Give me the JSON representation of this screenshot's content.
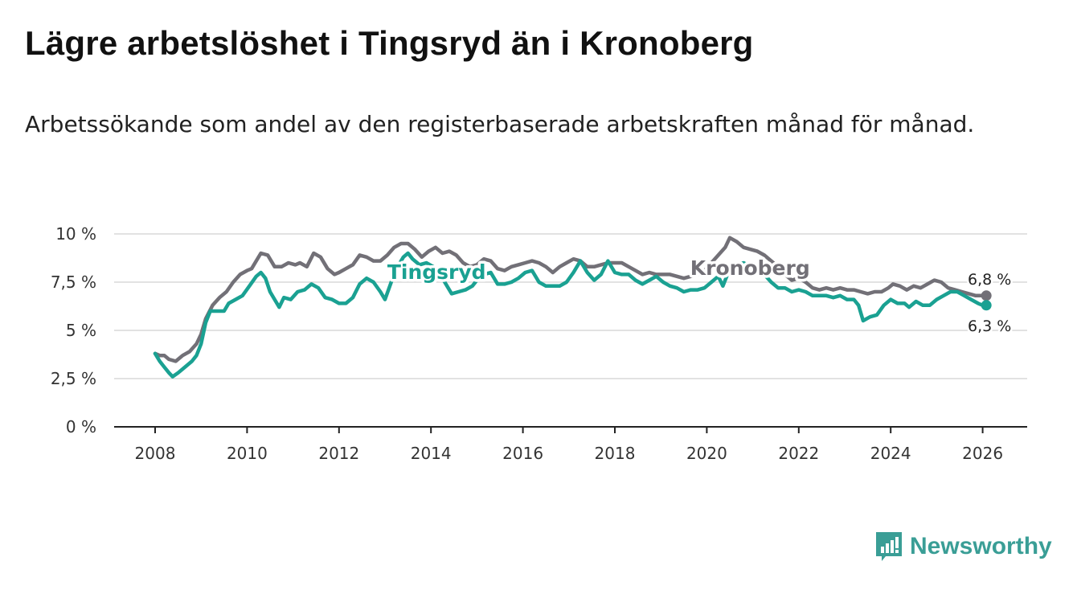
{
  "title": "Lägre arbetslöshet i Tingsryd än i Kronoberg",
  "subtitle": "Arbetssökande som andel av den registerbaserade arbetskraften månad för månad.",
  "brand": {
    "name": "Newsworthy",
    "icon": "newsworthy-logo-icon",
    "color": "#3a9e96"
  },
  "chart_data": {
    "type": "line",
    "title": "Lägre arbetslöshet i Tingsryd än i Kronoberg",
    "xlabel": "",
    "ylabel": "",
    "xlim": [
      2007.5,
      2027.0
    ],
    "ylim": [
      0,
      10
    ],
    "grid": true,
    "y_ticks": [
      0,
      2.5,
      5,
      7.5,
      10
    ],
    "y_tick_labels": [
      "0 %",
      "2,5 %",
      "5 %",
      "7,5 %",
      "10 %"
    ],
    "x_ticks": [
      2008,
      2010,
      2012,
      2014,
      2016,
      2018,
      2020,
      2022,
      2024,
      2026
    ],
    "x_tick_labels": [
      "2008",
      "2010",
      "2012",
      "2014",
      "2016",
      "2018",
      "2020",
      "2022",
      "2024",
      "2026"
    ],
    "series": [
      {
        "name": "Kronoberg",
        "label": "Kronoberg",
        "color": "#727077",
        "end_label": "6,8 %",
        "points": [
          [
            2008.0,
            3.8
          ],
          [
            2008.1,
            3.7
          ],
          [
            2008.2,
            3.7
          ],
          [
            2008.3,
            3.5
          ],
          [
            2008.45,
            3.4
          ],
          [
            2008.6,
            3.7
          ],
          [
            2008.75,
            3.9
          ],
          [
            2008.9,
            4.3
          ],
          [
            2009.0,
            4.8
          ],
          [
            2009.1,
            5.6
          ],
          [
            2009.25,
            6.3
          ],
          [
            2009.4,
            6.7
          ],
          [
            2009.55,
            7.0
          ],
          [
            2009.7,
            7.5
          ],
          [
            2009.85,
            7.9
          ],
          [
            2010.0,
            8.1
          ],
          [
            2010.1,
            8.2
          ],
          [
            2010.2,
            8.6
          ],
          [
            2010.3,
            9.0
          ],
          [
            2010.45,
            8.9
          ],
          [
            2010.6,
            8.3
          ],
          [
            2010.75,
            8.3
          ],
          [
            2010.9,
            8.5
          ],
          [
            2011.05,
            8.4
          ],
          [
            2011.15,
            8.5
          ],
          [
            2011.3,
            8.3
          ],
          [
            2011.45,
            9.0
          ],
          [
            2011.6,
            8.8
          ],
          [
            2011.75,
            8.2
          ],
          [
            2011.9,
            7.9
          ],
          [
            2012.0,
            8.0
          ],
          [
            2012.15,
            8.2
          ],
          [
            2012.3,
            8.4
          ],
          [
            2012.45,
            8.9
          ],
          [
            2012.6,
            8.8
          ],
          [
            2012.75,
            8.6
          ],
          [
            2012.9,
            8.6
          ],
          [
            2013.05,
            8.9
          ],
          [
            2013.2,
            9.3
          ],
          [
            2013.35,
            9.5
          ],
          [
            2013.5,
            9.5
          ],
          [
            2013.65,
            9.2
          ],
          [
            2013.8,
            8.8
          ],
          [
            2013.95,
            9.1
          ],
          [
            2014.1,
            9.3
          ],
          [
            2014.25,
            9.0
          ],
          [
            2014.4,
            9.1
          ],
          [
            2014.55,
            8.9
          ],
          [
            2014.7,
            8.5
          ],
          [
            2014.85,
            8.3
          ],
          [
            2015.0,
            8.4
          ],
          [
            2015.15,
            8.7
          ],
          [
            2015.3,
            8.6
          ],
          [
            2015.45,
            8.2
          ],
          [
            2015.6,
            8.1
          ],
          [
            2015.75,
            8.3
          ],
          [
            2015.9,
            8.4
          ],
          [
            2016.05,
            8.5
          ],
          [
            2016.2,
            8.6
          ],
          [
            2016.35,
            8.5
          ],
          [
            2016.5,
            8.3
          ],
          [
            2016.65,
            8.0
          ],
          [
            2016.8,
            8.3
          ],
          [
            2016.95,
            8.5
          ],
          [
            2017.1,
            8.7
          ],
          [
            2017.25,
            8.6
          ],
          [
            2017.4,
            8.3
          ],
          [
            2017.55,
            8.3
          ],
          [
            2017.7,
            8.4
          ],
          [
            2017.85,
            8.5
          ],
          [
            2018.0,
            8.5
          ],
          [
            2018.15,
            8.5
          ],
          [
            2018.3,
            8.3
          ],
          [
            2018.45,
            8.1
          ],
          [
            2018.6,
            7.9
          ],
          [
            2018.75,
            8.0
          ],
          [
            2018.9,
            7.9
          ],
          [
            2019.05,
            7.9
          ],
          [
            2019.2,
            7.9
          ],
          [
            2019.35,
            7.8
          ],
          [
            2019.5,
            7.7
          ],
          [
            2019.65,
            7.8
          ],
          [
            2019.8,
            7.9
          ],
          [
            2019.95,
            8.1
          ],
          [
            2020.1,
            8.5
          ],
          [
            2020.25,
            8.9
          ],
          [
            2020.4,
            9.3
          ],
          [
            2020.5,
            9.8
          ],
          [
            2020.65,
            9.6
          ],
          [
            2020.8,
            9.3
          ],
          [
            2020.95,
            9.2
          ],
          [
            2021.1,
            9.1
          ],
          [
            2021.25,
            8.9
          ],
          [
            2021.4,
            8.6
          ],
          [
            2021.55,
            8.3
          ],
          [
            2021.7,
            7.9
          ],
          [
            2021.85,
            7.6
          ],
          [
            2022.0,
            7.7
          ],
          [
            2022.15,
            7.5
          ],
          [
            2022.3,
            7.2
          ],
          [
            2022.45,
            7.1
          ],
          [
            2022.6,
            7.2
          ],
          [
            2022.75,
            7.1
          ],
          [
            2022.9,
            7.2
          ],
          [
            2023.05,
            7.1
          ],
          [
            2023.2,
            7.1
          ],
          [
            2023.35,
            7.0
          ],
          [
            2023.5,
            6.9
          ],
          [
            2023.65,
            7.0
          ],
          [
            2023.8,
            7.0
          ],
          [
            2023.95,
            7.2
          ],
          [
            2024.05,
            7.4
          ],
          [
            2024.2,
            7.3
          ],
          [
            2024.35,
            7.1
          ],
          [
            2024.5,
            7.3
          ],
          [
            2024.65,
            7.2
          ],
          [
            2024.8,
            7.4
          ],
          [
            2024.95,
            7.6
          ],
          [
            2025.1,
            7.5
          ],
          [
            2025.25,
            7.2
          ],
          [
            2025.4,
            7.1
          ],
          [
            2025.55,
            7.0
          ],
          [
            2025.7,
            6.9
          ],
          [
            2025.85,
            6.8
          ],
          [
            2026.0,
            6.8
          ],
          [
            2026.08,
            6.8
          ]
        ]
      },
      {
        "name": "Tingsryd",
        "label": "Tingsryd",
        "color": "#1aa192",
        "end_label": "6,3 %",
        "points": [
          [
            2008.0,
            3.8
          ],
          [
            2008.1,
            3.4
          ],
          [
            2008.2,
            3.1
          ],
          [
            2008.3,
            2.8
          ],
          [
            2008.38,
            2.6
          ],
          [
            2008.5,
            2.8
          ],
          [
            2008.65,
            3.1
          ],
          [
            2008.8,
            3.4
          ],
          [
            2008.9,
            3.7
          ],
          [
            2009.0,
            4.3
          ],
          [
            2009.1,
            5.4
          ],
          [
            2009.2,
            6.0
          ],
          [
            2009.35,
            6.0
          ],
          [
            2009.5,
            6.0
          ],
          [
            2009.6,
            6.4
          ],
          [
            2009.75,
            6.6
          ],
          [
            2009.9,
            6.8
          ],
          [
            2010.05,
            7.3
          ],
          [
            2010.2,
            7.8
          ],
          [
            2010.3,
            8.0
          ],
          [
            2010.4,
            7.7
          ],
          [
            2010.5,
            7.0
          ],
          [
            2010.6,
            6.6
          ],
          [
            2010.7,
            6.2
          ],
          [
            2010.8,
            6.7
          ],
          [
            2010.95,
            6.6
          ],
          [
            2011.1,
            7.0
          ],
          [
            2011.25,
            7.1
          ],
          [
            2011.4,
            7.4
          ],
          [
            2011.55,
            7.2
          ],
          [
            2011.7,
            6.7
          ],
          [
            2011.85,
            6.6
          ],
          [
            2012.0,
            6.4
          ],
          [
            2012.15,
            6.4
          ],
          [
            2012.3,
            6.7
          ],
          [
            2012.45,
            7.4
          ],
          [
            2012.6,
            7.7
          ],
          [
            2012.75,
            7.5
          ],
          [
            2012.9,
            7.0
          ],
          [
            2013.0,
            6.6
          ],
          [
            2013.15,
            7.6
          ],
          [
            2013.3,
            8.4
          ],
          [
            2013.4,
            8.8
          ],
          [
            2013.5,
            9.0
          ],
          [
            2013.6,
            8.7
          ],
          [
            2013.75,
            8.4
          ],
          [
            2013.9,
            8.5
          ],
          [
            2014.05,
            8.3
          ],
          [
            2014.2,
            7.9
          ],
          [
            2014.35,
            7.3
          ],
          [
            2014.45,
            6.9
          ],
          [
            2014.6,
            7.0
          ],
          [
            2014.75,
            7.1
          ],
          [
            2014.9,
            7.3
          ],
          [
            2015.0,
            7.6
          ],
          [
            2015.15,
            7.9
          ],
          [
            2015.3,
            8.0
          ],
          [
            2015.45,
            7.4
          ],
          [
            2015.6,
            7.4
          ],
          [
            2015.75,
            7.5
          ],
          [
            2015.9,
            7.7
          ],
          [
            2016.05,
            8.0
          ],
          [
            2016.2,
            8.1
          ],
          [
            2016.35,
            7.5
          ],
          [
            2016.5,
            7.3
          ],
          [
            2016.65,
            7.3
          ],
          [
            2016.8,
            7.3
          ],
          [
            2016.95,
            7.5
          ],
          [
            2017.1,
            8.0
          ],
          [
            2017.25,
            8.6
          ],
          [
            2017.4,
            8.0
          ],
          [
            2017.55,
            7.6
          ],
          [
            2017.7,
            7.9
          ],
          [
            2017.85,
            8.6
          ],
          [
            2018.0,
            8.0
          ],
          [
            2018.15,
            7.9
          ],
          [
            2018.3,
            7.9
          ],
          [
            2018.45,
            7.6
          ],
          [
            2018.6,
            7.4
          ],
          [
            2018.75,
            7.6
          ],
          [
            2018.9,
            7.8
          ],
          [
            2019.05,
            7.5
          ],
          [
            2019.2,
            7.3
          ],
          [
            2019.35,
            7.2
          ],
          [
            2019.5,
            7.0
          ],
          [
            2019.65,
            7.1
          ],
          [
            2019.8,
            7.1
          ],
          [
            2019.95,
            7.2
          ],
          [
            2020.1,
            7.5
          ],
          [
            2020.25,
            7.8
          ],
          [
            2020.35,
            7.3
          ],
          [
            2020.5,
            8.2
          ],
          [
            2020.65,
            8.4
          ],
          [
            2020.8,
            8.5
          ],
          [
            2020.95,
            8.3
          ],
          [
            2021.1,
            8.1
          ],
          [
            2021.25,
            7.9
          ],
          [
            2021.4,
            7.5
          ],
          [
            2021.55,
            7.2
          ],
          [
            2021.7,
            7.2
          ],
          [
            2021.85,
            7.0
          ],
          [
            2022.0,
            7.1
          ],
          [
            2022.15,
            7.0
          ],
          [
            2022.3,
            6.8
          ],
          [
            2022.45,
            6.8
          ],
          [
            2022.6,
            6.8
          ],
          [
            2022.75,
            6.7
          ],
          [
            2022.9,
            6.8
          ],
          [
            2023.05,
            6.6
          ],
          [
            2023.2,
            6.6
          ],
          [
            2023.3,
            6.3
          ],
          [
            2023.4,
            5.5
          ],
          [
            2023.55,
            5.7
          ],
          [
            2023.7,
            5.8
          ],
          [
            2023.85,
            6.3
          ],
          [
            2024.0,
            6.6
          ],
          [
            2024.15,
            6.4
          ],
          [
            2024.3,
            6.4
          ],
          [
            2024.4,
            6.2
          ],
          [
            2024.55,
            6.5
          ],
          [
            2024.7,
            6.3
          ],
          [
            2024.85,
            6.3
          ],
          [
            2025.0,
            6.6
          ],
          [
            2025.15,
            6.8
          ],
          [
            2025.3,
            7.0
          ],
          [
            2025.45,
            7.0
          ],
          [
            2025.6,
            6.8
          ],
          [
            2025.75,
            6.6
          ],
          [
            2025.9,
            6.4
          ],
          [
            2026.0,
            6.3
          ],
          [
            2026.08,
            6.3
          ]
        ]
      }
    ]
  }
}
